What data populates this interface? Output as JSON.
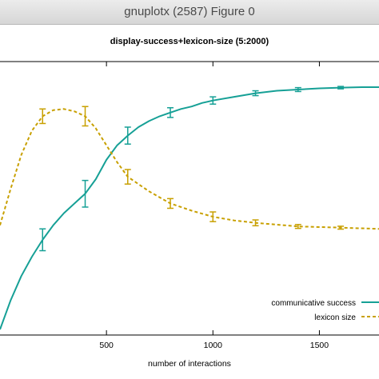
{
  "window": {
    "title": "gnuplotx (2587) Figure 0"
  },
  "colors": {
    "success": "#16a096",
    "lexicon": "#c8a000",
    "axis": "#000000",
    "background": "#ffffff"
  },
  "chart_data": {
    "type": "line",
    "title": "display-success+lexicon-size (5:2000)",
    "xlabel": "number of interactions",
    "ylabel": "",
    "xlim": [
      0,
      1780
    ],
    "ylim": [
      0,
      1.0
    ],
    "xticks": [
      500,
      1000,
      1500
    ],
    "xtick_labels": [
      "500",
      "1000",
      "1500"
    ],
    "legend_position": "bottom-right",
    "grid": false,
    "series": [
      {
        "name": "communicative success",
        "style": "solid",
        "color": "#16a096",
        "x": [
          0,
          50,
          100,
          150,
          200,
          250,
          300,
          350,
          400,
          450,
          500,
          550,
          600,
          650,
          700,
          750,
          800,
          850,
          900,
          950,
          1000,
          1100,
          1200,
          1300,
          1400,
          1500,
          1600,
          1700,
          1780
        ],
        "y": [
          0.0,
          0.12,
          0.22,
          0.3,
          0.37,
          0.43,
          0.48,
          0.52,
          0.56,
          0.62,
          0.7,
          0.76,
          0.8,
          0.835,
          0.86,
          0.88,
          0.895,
          0.91,
          0.92,
          0.935,
          0.945,
          0.96,
          0.975,
          0.985,
          0.99,
          0.995,
          0.998,
          1.0,
          1.0
        ],
        "error_bars": [
          {
            "x": 200,
            "y": 0.37,
            "err": 0.045
          },
          {
            "x": 400,
            "y": 0.56,
            "err": 0.055
          },
          {
            "x": 600,
            "y": 0.8,
            "err": 0.035
          },
          {
            "x": 800,
            "y": 0.895,
            "err": 0.02
          },
          {
            "x": 1000,
            "y": 0.945,
            "err": 0.015
          },
          {
            "x": 1200,
            "y": 0.975,
            "err": 0.01
          },
          {
            "x": 1400,
            "y": 0.99,
            "err": 0.008
          },
          {
            "x": 1600,
            "y": 0.998,
            "err": 0.005
          }
        ]
      },
      {
        "name": "lexicon size",
        "style": "dashed",
        "color": "#c8a000",
        "x": [
          0,
          50,
          100,
          150,
          200,
          250,
          300,
          350,
          400,
          450,
          500,
          550,
          600,
          700,
          800,
          900,
          1000,
          1100,
          1200,
          1400,
          1600,
          1780
        ],
        "y": [
          0.43,
          0.58,
          0.72,
          0.82,
          0.88,
          0.905,
          0.91,
          0.9,
          0.88,
          0.83,
          0.76,
          0.69,
          0.63,
          0.57,
          0.52,
          0.49,
          0.465,
          0.45,
          0.44,
          0.425,
          0.42,
          0.415
        ],
        "error_bars": [
          {
            "x": 200,
            "y": 0.88,
            "err": 0.03
          },
          {
            "x": 400,
            "y": 0.88,
            "err": 0.04
          },
          {
            "x": 600,
            "y": 0.63,
            "err": 0.03
          },
          {
            "x": 800,
            "y": 0.52,
            "err": 0.02
          },
          {
            "x": 1000,
            "y": 0.465,
            "err": 0.02
          },
          {
            "x": 1200,
            "y": 0.44,
            "err": 0.012
          },
          {
            "x": 1400,
            "y": 0.425,
            "err": 0.008
          },
          {
            "x": 1600,
            "y": 0.42,
            "err": 0.006
          }
        ]
      }
    ]
  }
}
